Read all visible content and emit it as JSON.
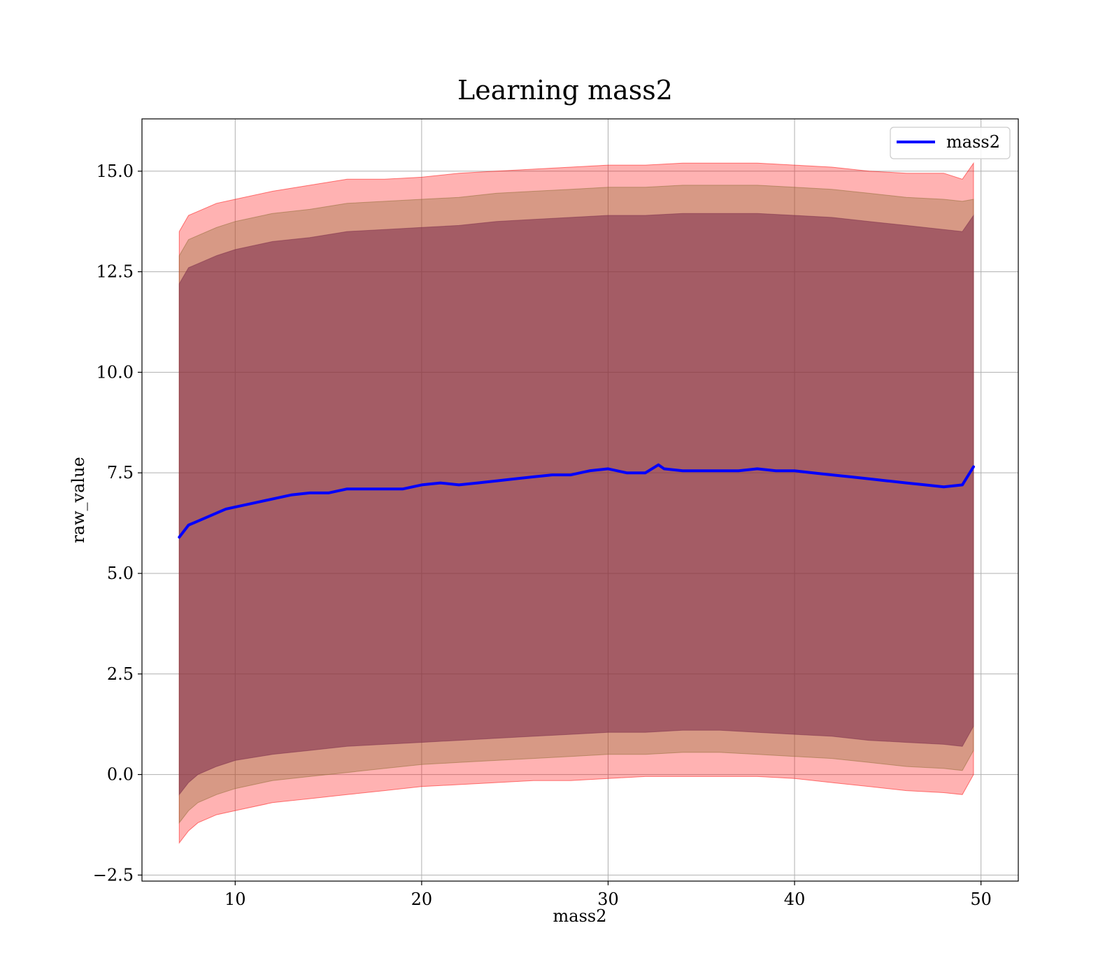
{
  "chart_data": {
    "type": "area",
    "title": "Learning mass2",
    "xlabel": "mass2",
    "ylabel": "raw_value",
    "xlim": [
      5,
      52
    ],
    "ylim": [
      -2.65,
      16.3
    ],
    "xticks": [
      10,
      20,
      30,
      40,
      50
    ],
    "xtick_labels": [
      "10",
      "20",
      "30",
      "40",
      "50"
    ],
    "yticks": [
      -2.5,
      0,
      2.5,
      5,
      7.5,
      10,
      12.5,
      15
    ],
    "ytick_labels": [
      "−2.5",
      "0.0",
      "2.5",
      "5.0",
      "7.5",
      "10.0",
      "12.5",
      "15.0"
    ],
    "grid": true,
    "legend": {
      "position": "top-right",
      "entries": [
        "mass2"
      ]
    },
    "line": {
      "name": "mass2",
      "color": "#0000ff",
      "x": [
        7.0,
        7.5,
        8.0,
        8.5,
        9.0,
        9.5,
        10.0,
        11.0,
        12.0,
        13.0,
        14.0,
        15.0,
        16.0,
        17.0,
        18.0,
        19.0,
        20.0,
        21.0,
        22.0,
        23.0,
        24.0,
        25.0,
        26.0,
        27.0,
        28.0,
        29.0,
        30.0,
        31.0,
        32.0,
        32.7,
        33.0,
        34.0,
        35.0,
        36.0,
        37.0,
        38.0,
        39.0,
        40.0,
        41.0,
        42.0,
        43.0,
        44.0,
        45.0,
        46.0,
        47.0,
        48.0,
        49.0,
        49.6
      ],
      "y": [
        5.9,
        6.2,
        6.3,
        6.4,
        6.5,
        6.6,
        6.65,
        6.75,
        6.85,
        6.95,
        7.0,
        7.0,
        7.1,
        7.1,
        7.1,
        7.1,
        7.2,
        7.25,
        7.2,
        7.25,
        7.3,
        7.35,
        7.4,
        7.45,
        7.45,
        7.55,
        7.6,
        7.5,
        7.5,
        7.7,
        7.6,
        7.55,
        7.55,
        7.55,
        7.55,
        7.6,
        7.55,
        7.55,
        7.5,
        7.45,
        7.4,
        7.35,
        7.3,
        7.25,
        7.2,
        7.15,
        7.2,
        7.65
      ]
    },
    "bands": [
      {
        "name": "band-outer",
        "color": "#ff0000",
        "opacity": 0.3,
        "x": [
          7.0,
          7.5,
          8.0,
          9.0,
          10.0,
          12.0,
          14.0,
          16.0,
          18.0,
          20.0,
          22.0,
          24.0,
          26.0,
          28.0,
          30.0,
          32.0,
          34.0,
          36.0,
          38.0,
          40.0,
          42.0,
          44.0,
          46.0,
          48.0,
          49.0,
          49.6
        ],
        "upper": [
          13.5,
          13.9,
          14.0,
          14.2,
          14.3,
          14.5,
          14.65,
          14.8,
          14.8,
          14.85,
          14.95,
          15.0,
          15.05,
          15.1,
          15.15,
          15.15,
          15.2,
          15.2,
          15.2,
          15.15,
          15.1,
          15.0,
          14.95,
          14.95,
          14.8,
          15.2
        ],
        "lower": [
          -1.7,
          -1.4,
          -1.2,
          -1.0,
          -0.9,
          -0.7,
          -0.6,
          -0.5,
          -0.4,
          -0.3,
          -0.25,
          -0.2,
          -0.15,
          -0.15,
          -0.1,
          -0.05,
          -0.05,
          -0.05,
          -0.05,
          -0.1,
          -0.2,
          -0.3,
          -0.4,
          -0.45,
          -0.5,
          0.0
        ]
      },
      {
        "name": "band-middle",
        "color": "#8b6a30",
        "opacity": 0.35,
        "x": [
          7.0,
          7.5,
          8.0,
          9.0,
          10.0,
          12.0,
          14.0,
          16.0,
          18.0,
          20.0,
          22.0,
          24.0,
          26.0,
          28.0,
          30.0,
          32.0,
          34.0,
          36.0,
          38.0,
          40.0,
          42.0,
          44.0,
          46.0,
          48.0,
          49.0,
          49.6
        ],
        "upper": [
          12.9,
          13.3,
          13.4,
          13.6,
          13.75,
          13.95,
          14.05,
          14.2,
          14.25,
          14.3,
          14.35,
          14.45,
          14.5,
          14.55,
          14.6,
          14.6,
          14.65,
          14.65,
          14.65,
          14.6,
          14.55,
          14.45,
          14.35,
          14.3,
          14.25,
          14.3
        ],
        "lower": [
          -1.2,
          -0.9,
          -0.7,
          -0.5,
          -0.35,
          -0.15,
          -0.05,
          0.05,
          0.15,
          0.25,
          0.3,
          0.35,
          0.4,
          0.45,
          0.5,
          0.5,
          0.55,
          0.55,
          0.5,
          0.45,
          0.4,
          0.3,
          0.2,
          0.15,
          0.1,
          0.6
        ]
      },
      {
        "name": "band-inner",
        "color": "#7a2a4a",
        "opacity": 0.55,
        "x": [
          7.0,
          7.5,
          8.0,
          9.0,
          10.0,
          12.0,
          14.0,
          16.0,
          18.0,
          20.0,
          22.0,
          24.0,
          26.0,
          28.0,
          30.0,
          32.0,
          34.0,
          36.0,
          38.0,
          40.0,
          42.0,
          44.0,
          46.0,
          48.0,
          49.0,
          49.6
        ],
        "upper": [
          12.2,
          12.6,
          12.7,
          12.9,
          13.05,
          13.25,
          13.35,
          13.5,
          13.55,
          13.6,
          13.65,
          13.75,
          13.8,
          13.85,
          13.9,
          13.9,
          13.95,
          13.95,
          13.95,
          13.9,
          13.85,
          13.75,
          13.65,
          13.55,
          13.5,
          13.9
        ],
        "lower": [
          -0.5,
          -0.2,
          0.0,
          0.2,
          0.35,
          0.5,
          0.6,
          0.7,
          0.75,
          0.8,
          0.85,
          0.9,
          0.95,
          1.0,
          1.05,
          1.05,
          1.1,
          1.1,
          1.05,
          1.0,
          0.95,
          0.85,
          0.8,
          0.75,
          0.7,
          1.2
        ]
      }
    ]
  }
}
